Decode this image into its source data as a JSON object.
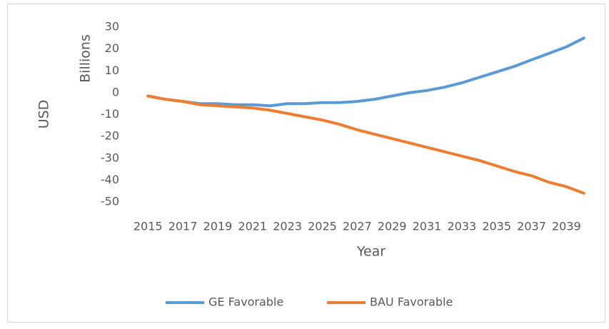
{
  "chart_data": {
    "type": "line",
    "x_label": "Year",
    "y_label": "USD",
    "y_unit_label": "Billions",
    "categories": [
      "2015",
      null,
      "2017",
      null,
      "2019",
      null,
      "2021",
      null,
      "2023",
      null,
      "2025",
      null,
      "2027",
      null,
      "2029",
      null,
      "2031",
      null,
      "2033",
      null,
      "2035",
      null,
      "2037",
      null,
      "2039",
      null
    ],
    "series": [
      {
        "name": "GE Favorable",
        "color": "#5b9bd5",
        "values": [
          -1.5,
          -3,
          -4,
          -5,
          -5,
          -5.5,
          -5.5,
          -6,
          -5,
          -5,
          -4.5,
          -4.5,
          -4,
          -3,
          -1.5,
          0,
          1,
          2.5,
          4.5,
          7,
          9.5,
          12,
          15,
          18,
          21,
          25
        ]
      },
      {
        "name": "BAU Favorable",
        "color": "#ed7d31",
        "values": [
          -1.5,
          -3,
          -4,
          -5.5,
          -6,
          -6.5,
          -7,
          -8,
          -9.5,
          -11,
          -12.5,
          -14.5,
          -17,
          -19,
          -21,
          -23,
          -25,
          -27,
          -29,
          -31,
          -33.5,
          -36,
          -38,
          -41,
          -43,
          -46
        ]
      }
    ],
    "ylim": [
      -50,
      30
    ],
    "yticks": [
      -50,
      -40,
      -30,
      -20,
      -10,
      0,
      10,
      20,
      30
    ],
    "grid": false,
    "legend": "bottom"
  }
}
